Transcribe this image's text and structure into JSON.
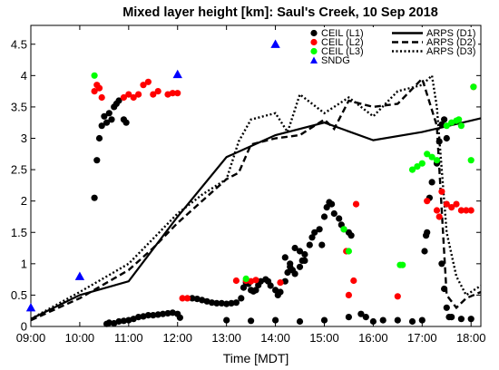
{
  "chart_data": {
    "type": "scatter",
    "title": "Mixed layer height [km]: Saul's Creek, 10 Sep 2018",
    "xlabel": "Time [MDT]",
    "ylabel": "",
    "xlim": [
      9.0,
      18.2
    ],
    "ylim": [
      0,
      4.8
    ],
    "x_ticks": [
      9,
      10,
      11,
      12,
      13,
      14,
      15,
      16,
      17,
      18
    ],
    "x_tick_labels": [
      "09:00",
      "10:00",
      "11:00",
      "12:00",
      "13:00",
      "14:00",
      "15:00",
      "16:00",
      "17:00",
      "18:00"
    ],
    "y_ticks": [
      0,
      0.5,
      1,
      1.5,
      2,
      2.5,
      3,
      3.5,
      4,
      4.5
    ],
    "y_tick_labels": [
      "0",
      "0.5",
      "1",
      "1.5",
      "2",
      "2.5",
      "3",
      "3.5",
      "4",
      "4.5"
    ],
    "grid": false,
    "legend_position": "top-right",
    "colors": {
      "ceil_l1": "#000000",
      "ceil_l2": "#ff0000",
      "ceil_l3": "#00ff00",
      "sndg": "#0000ff"
    },
    "point_series": [
      {
        "name": "CEIL (L1)",
        "marker": "circle",
        "color": "#000000",
        "data": [
          [
            10.55,
            0.04
          ],
          [
            10.6,
            0.06
          ],
          [
            10.7,
            0.05
          ],
          [
            10.8,
            0.08
          ],
          [
            10.9,
            0.09
          ],
          [
            11.0,
            0.1
          ],
          [
            11.1,
            0.12
          ],
          [
            11.2,
            0.15
          ],
          [
            11.3,
            0.16
          ],
          [
            11.4,
            0.18
          ],
          [
            11.5,
            0.18
          ],
          [
            11.6,
            0.19
          ],
          [
            11.7,
            0.2
          ],
          [
            11.8,
            0.21
          ],
          [
            11.9,
            0.22
          ],
          [
            12.0,
            0.2
          ],
          [
            12.05,
            0.14
          ],
          [
            12.3,
            0.45
          ],
          [
            12.4,
            0.44
          ],
          [
            12.5,
            0.42
          ],
          [
            12.6,
            0.4
          ],
          [
            12.7,
            0.38
          ],
          [
            12.8,
            0.37
          ],
          [
            12.9,
            0.37
          ],
          [
            13.0,
            0.36
          ],
          [
            13.1,
            0.37
          ],
          [
            13.2,
            0.38
          ],
          [
            13.3,
            0.45
          ],
          [
            13.35,
            0.62
          ],
          [
            13.4,
            0.7
          ],
          [
            13.45,
            0.68
          ],
          [
            13.5,
            0.58
          ],
          [
            13.55,
            0.56
          ],
          [
            13.6,
            0.58
          ],
          [
            13.65,
            0.66
          ],
          [
            13.7,
            0.72
          ],
          [
            13.8,
            0.75
          ],
          [
            13.85,
            0.72
          ],
          [
            13.9,
            0.65
          ],
          [
            14.0,
            0.58
          ],
          [
            14.05,
            0.5
          ],
          [
            14.1,
            0.55
          ],
          [
            14.2,
            0.72
          ],
          [
            14.25,
            0.86
          ],
          [
            14.3,
            0.95
          ],
          [
            14.35,
            0.9
          ],
          [
            14.4,
            0.84
          ],
          [
            14.5,
            0.95
          ],
          [
            14.55,
            1.05
          ],
          [
            14.6,
            1.15
          ],
          [
            14.7,
            1.3
          ],
          [
            14.75,
            1.42
          ],
          [
            14.8,
            1.5
          ],
          [
            14.9,
            1.55
          ],
          [
            14.95,
            1.3
          ],
          [
            15.0,
            1.75
          ],
          [
            15.05,
            1.9
          ],
          [
            15.1,
            1.98
          ],
          [
            15.15,
            1.95
          ],
          [
            15.2,
            1.8
          ],
          [
            15.3,
            1.72
          ],
          [
            15.35,
            1.62
          ],
          [
            15.4,
            1.55
          ],
          [
            15.5,
            1.5
          ],
          [
            15.55,
            1.45
          ],
          [
            14.2,
            1.1
          ],
          [
            14.3,
            1.0
          ],
          [
            14.4,
            1.25
          ],
          [
            14.5,
            1.2
          ],
          [
            14.6,
            1.05
          ],
          [
            13.0,
            0.1
          ],
          [
            13.5,
            0.09
          ],
          [
            14.0,
            0.1
          ],
          [
            14.5,
            0.08
          ],
          [
            15.0,
            0.1
          ],
          [
            15.5,
            0.15
          ],
          [
            15.75,
            0.2
          ],
          [
            15.85,
            0.15
          ],
          [
            16.0,
            0.08
          ],
          [
            16.2,
            0.1
          ],
          [
            16.5,
            0.1
          ],
          [
            16.8,
            0.08
          ],
          [
            17.0,
            0.1
          ],
          [
            17.6,
            0.15
          ],
          [
            17.8,
            0.12
          ],
          [
            18.0,
            0.12
          ],
          [
            17.05,
            1.2
          ],
          [
            17.08,
            1.45
          ],
          [
            17.1,
            1.5
          ],
          [
            17.15,
            2.05
          ],
          [
            17.2,
            2.3
          ],
          [
            17.3,
            2.6
          ],
          [
            17.35,
            2.95
          ],
          [
            17.4,
            3.22
          ],
          [
            17.45,
            3.3
          ],
          [
            17.5,
            3.0
          ],
          [
            17.4,
            1.0
          ],
          [
            17.45,
            0.6
          ],
          [
            17.5,
            0.3
          ],
          [
            17.55,
            0.15
          ],
          [
            10.3,
            2.05
          ],
          [
            10.35,
            2.65
          ],
          [
            10.4,
            3.0
          ],
          [
            10.45,
            3.2
          ],
          [
            10.5,
            3.35
          ],
          [
            10.6,
            3.4
          ],
          [
            10.7,
            3.5
          ],
          [
            10.75,
            3.55
          ],
          [
            10.8,
            3.6
          ],
          [
            10.65,
            3.3
          ],
          [
            10.55,
            3.25
          ],
          [
            10.9,
            3.3
          ],
          [
            10.95,
            3.25
          ]
        ]
      },
      {
        "name": "CEIL (L2)",
        "marker": "circle",
        "color": "#ff0000",
        "data": [
          [
            10.3,
            3.75
          ],
          [
            10.35,
            3.85
          ],
          [
            10.4,
            3.8
          ],
          [
            10.45,
            3.65
          ],
          [
            10.9,
            3.65
          ],
          [
            11.0,
            3.7
          ],
          [
            11.1,
            3.65
          ],
          [
            11.2,
            3.7
          ],
          [
            11.3,
            3.85
          ],
          [
            11.4,
            3.9
          ],
          [
            11.5,
            3.7
          ],
          [
            11.6,
            3.75
          ],
          [
            11.8,
            3.7
          ],
          [
            11.9,
            3.72
          ],
          [
            12.0,
            3.72
          ],
          [
            12.1,
            0.45
          ],
          [
            12.2,
            0.45
          ],
          [
            13.2,
            0.73
          ],
          [
            13.4,
            0.73
          ],
          [
            13.5,
            0.72
          ],
          [
            13.6,
            0.74
          ],
          [
            14.1,
            0.7
          ],
          [
            15.45,
            1.2
          ],
          [
            15.65,
            1.95
          ],
          [
            15.6,
            0.73
          ],
          [
            15.5,
            0.5
          ],
          [
            16.5,
            0.48
          ],
          [
            17.1,
            2.0
          ],
          [
            17.4,
            2.15
          ],
          [
            17.5,
            1.95
          ],
          [
            17.6,
            1.9
          ],
          [
            17.7,
            1.95
          ],
          [
            17.8,
            1.85
          ],
          [
            17.9,
            1.85
          ],
          [
            18.0,
            1.85
          ],
          [
            17.3,
            1.85
          ],
          [
            17.35,
            1.75
          ],
          [
            18.05,
            3.82
          ]
        ]
      },
      {
        "name": "CEIL (L3)",
        "marker": "circle",
        "color": "#00ff00",
        "data": [
          [
            10.3,
            4.0
          ],
          [
            13.4,
            0.76
          ],
          [
            15.4,
            1.55
          ],
          [
            15.5,
            1.2
          ],
          [
            16.55,
            0.98
          ],
          [
            16.6,
            0.98
          ],
          [
            16.8,
            2.5
          ],
          [
            16.9,
            2.55
          ],
          [
            17.0,
            2.6
          ],
          [
            17.1,
            2.75
          ],
          [
            17.2,
            2.7
          ],
          [
            17.3,
            2.65
          ],
          [
            17.5,
            3.2
          ],
          [
            17.6,
            3.25
          ],
          [
            17.7,
            3.28
          ],
          [
            17.75,
            3.3
          ],
          [
            17.8,
            3.2
          ],
          [
            18.0,
            2.65
          ],
          [
            18.05,
            3.82
          ]
        ]
      },
      {
        "name": "SNDG",
        "marker": "triangle",
        "color": "#0000ff",
        "data": [
          [
            9.0,
            0.3
          ],
          [
            10.0,
            0.8
          ],
          [
            12.0,
            4.02
          ],
          [
            14.0,
            4.5
          ]
        ]
      }
    ],
    "line_series": [
      {
        "name": "ARPS (D1)",
        "style": "solid",
        "x": [
          9.0,
          10.0,
          11.0,
          12.0,
          13.0,
          14.0,
          15.0,
          16.0,
          17.0,
          18.2
        ],
        "y": [
          0.12,
          0.5,
          0.72,
          1.75,
          2.7,
          3.05,
          3.25,
          2.97,
          3.1,
          3.32
        ]
      },
      {
        "name": "ARPS (D2)",
        "style": "dashed",
        "x": [
          9.0,
          10.0,
          11.0,
          11.5,
          12.0,
          13.0,
          13.25,
          13.5,
          14.0,
          14.5,
          15.0,
          15.2,
          15.5,
          16.0,
          16.5,
          17.0,
          17.3,
          17.5,
          17.7,
          17.9,
          18.2
        ],
        "y": [
          0.1,
          0.45,
          0.9,
          1.25,
          1.65,
          2.35,
          2.45,
          2.9,
          3.0,
          3.05,
          3.3,
          3.15,
          3.6,
          3.5,
          3.55,
          3.95,
          3.2,
          0.5,
          0.3,
          0.45,
          0.55
        ]
      },
      {
        "name": "ARPS (D3)",
        "style": "dotted",
        "x": [
          9.0,
          10.0,
          11.0,
          11.5,
          12.0,
          12.5,
          13.0,
          13.25,
          13.5,
          14.0,
          14.25,
          14.5,
          15.0,
          15.5,
          16.0,
          16.5,
          17.0,
          17.2,
          17.3,
          17.5,
          17.7,
          17.9,
          18.2
        ],
        "y": [
          0.12,
          0.55,
          1.0,
          1.4,
          1.8,
          2.1,
          2.35,
          2.95,
          3.3,
          3.4,
          3.1,
          3.7,
          3.4,
          3.65,
          3.35,
          3.75,
          3.85,
          4.0,
          3.5,
          1.5,
          0.8,
          0.5,
          0.65
        ]
      }
    ]
  }
}
